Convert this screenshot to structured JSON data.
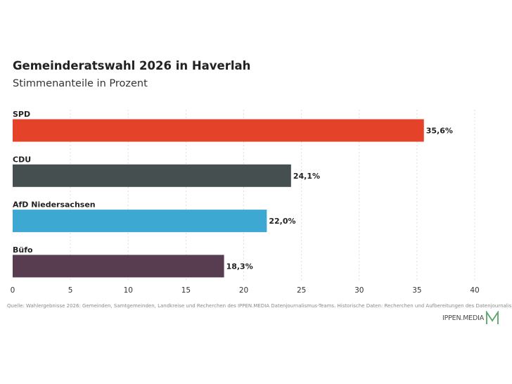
{
  "header": {
    "title": "Gemeinderatswahl 2026 in Haverlah",
    "subtitle": "Stimmenanteile in Prozent"
  },
  "chart_data": {
    "type": "bar",
    "orientation": "horizontal",
    "title": "Gemeinderatswahl 2026 in Haverlah",
    "subtitle": "Stimmenanteile in Prozent",
    "categories": [
      "SPD",
      "CDU",
      "AfD Niedersachsen",
      "Büfo"
    ],
    "values": [
      35.6,
      24.1,
      22.0,
      18.3
    ],
    "value_labels": [
      "35,6%",
      "24,1%",
      "22,0%",
      "18,3%"
    ],
    "colors": [
      "#e4432a",
      "#454f50",
      "#3da9d3",
      "#583c4f"
    ],
    "xlim": [
      0,
      40
    ],
    "xticks": [
      0,
      5,
      10,
      15,
      20,
      25,
      30,
      35,
      40
    ],
    "grid": true,
    "legend": "none"
  },
  "footer": {
    "source": "Quelle: Wahlergebnisse 2026: Gemeinden, Samtgemeinden, Landkreise und Recherchen des IPPEN.MEDIA Datenjournalismus-Teams. Historische Daten: Recherchen und Aufbereitungen des Datenjournalismus-Teams",
    "brand": "IPPEN.MEDIA",
    "brand_icon": "ippen-media-logo-icon",
    "brand_color": "#5aa469"
  }
}
